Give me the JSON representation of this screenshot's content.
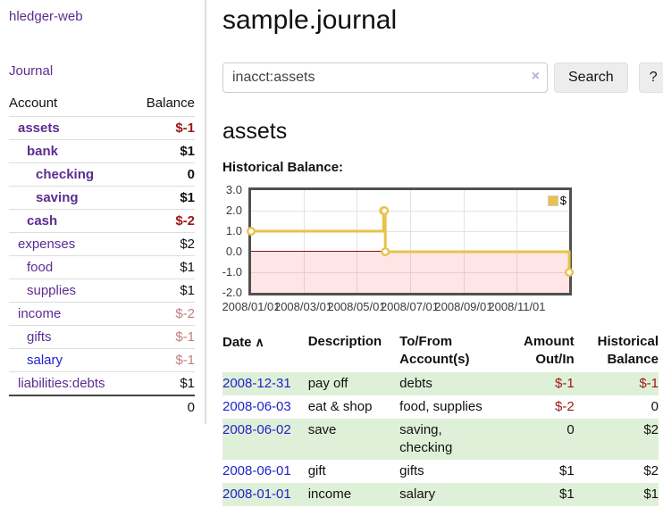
{
  "sidebar": {
    "app_title": "hledger-web",
    "nav_journal": "Journal",
    "accounts_table": {
      "headers": {
        "account": "Account",
        "balance": "Balance"
      },
      "rows": [
        {
          "name": "assets",
          "depth": 1,
          "bold": true,
          "balance": "$-1",
          "balance_style": "negstrong"
        },
        {
          "name": "bank",
          "depth": 2,
          "bold": true,
          "balance": "$1",
          "balance_style": "pos"
        },
        {
          "name": "checking",
          "depth": 3,
          "bold": true,
          "balance": "0",
          "balance_style": "pos"
        },
        {
          "name": "saving",
          "depth": 3,
          "bold": true,
          "balance": "$1",
          "balance_style": "pos"
        },
        {
          "name": "cash",
          "depth": 2,
          "bold": true,
          "balance": "$-2",
          "balance_style": "negstrong"
        },
        {
          "name": "expenses",
          "depth": 1,
          "bold": false,
          "balance": "$2",
          "balance_style": "pos"
        },
        {
          "name": "food",
          "depth": 2,
          "bold": false,
          "balance": "$1",
          "balance_style": "pos"
        },
        {
          "name": "supplies",
          "depth": 2,
          "bold": false,
          "balance": "$1",
          "balance_style": "pos"
        },
        {
          "name": "income",
          "depth": 1,
          "bold": false,
          "balance": "$-2",
          "balance_style": "negsoft"
        },
        {
          "name": "gifts",
          "depth": 2,
          "bold": false,
          "balance": "$-1",
          "balance_style": "negsoft"
        },
        {
          "name": "salary",
          "depth": 2,
          "bold": false,
          "link": "blue",
          "balance": "$-1",
          "balance_style": "negsoft"
        },
        {
          "name": "liabilities:debts",
          "depth": 1,
          "bold": false,
          "balance": "$1",
          "balance_style": "pos"
        }
      ],
      "total": "0"
    }
  },
  "main": {
    "title": "sample.journal",
    "search": {
      "value": "inacct:assets",
      "clear_icon": "×",
      "button_label": "Search",
      "help_label": "?"
    },
    "account_heading": "assets",
    "chart_label": "Historical Balance:",
    "register_table": {
      "headers": {
        "date": "Date",
        "description": "Description",
        "accounts": "To/From Account(s)",
        "amount": "Amount Out/In",
        "balance": "Historical Balance"
      },
      "sort_icon": "∧",
      "rows": [
        {
          "date": "2008-12-31",
          "description": "pay off",
          "accounts": "debts",
          "amount": "$-1",
          "amount_neg": true,
          "balance": "$-1",
          "balance_neg": true
        },
        {
          "date": "2008-06-03",
          "description": "eat & shop",
          "accounts": "food, supplies",
          "amount": "$-2",
          "amount_neg": true,
          "balance": "0",
          "balance_neg": false
        },
        {
          "date": "2008-06-02",
          "description": "save",
          "accounts": "saving, checking",
          "amount": "0",
          "amount_neg": false,
          "balance": "$2",
          "balance_neg": false
        },
        {
          "date": "2008-06-01",
          "description": "gift",
          "accounts": "gifts",
          "amount": "$1",
          "amount_neg": false,
          "balance": "$2",
          "balance_neg": false
        },
        {
          "date": "2008-01-01",
          "description": "income",
          "accounts": "salary",
          "amount": "$1",
          "amount_neg": false,
          "balance": "$1",
          "balance_neg": false
        }
      ]
    }
  },
  "chart_data": {
    "type": "line",
    "step": true,
    "title": "Historical Balance",
    "series": [
      {
        "name": "$",
        "points": [
          {
            "date": "2008-01-01",
            "day": 0,
            "value": 1
          },
          {
            "date": "2008-06-01",
            "day": 152,
            "value": 2
          },
          {
            "date": "2008-06-02",
            "day": 153,
            "value": 2
          },
          {
            "date": "2008-06-03",
            "day": 154,
            "value": 0
          },
          {
            "date": "2008-12-31",
            "day": 365,
            "value": -1
          }
        ]
      }
    ],
    "ylim": [
      -2,
      3
    ],
    "x_range_days": 365,
    "yticks": [
      {
        "label": "3.0",
        "value": 3
      },
      {
        "label": "2.0",
        "value": 2
      },
      {
        "label": "1.0",
        "value": 1
      },
      {
        "label": "0.0",
        "value": 0
      },
      {
        "label": "-1.0",
        "value": -1
      },
      {
        "label": "-2.0",
        "value": -2
      }
    ],
    "xticks": [
      {
        "label": "2008/01/01",
        "day": 0
      },
      {
        "label": "2008/03/01",
        "day": 60
      },
      {
        "label": "2008/05/01",
        "day": 121
      },
      {
        "label": "2008/07/01",
        "day": 182
      },
      {
        "label": "2008/09/01",
        "day": 244
      },
      {
        "label": "2008/11/01",
        "day": 305
      }
    ],
    "legend_position": "top-right",
    "negative_region_shaded": true,
    "grid": true
  },
  "colors": {
    "link_purple": "#5c2d91",
    "link_blue": "#2222cc",
    "negative_strong": "#9c1717",
    "negative_soft": "#c47e7e",
    "row_stripe_green": "#dff0d8",
    "chart_line_gold": "#e8c24a",
    "chart_zero_line": "#8c0d0d",
    "chart_negative_fill": "rgba(255,70,70,0.14)",
    "chart_border": "#515151"
  }
}
